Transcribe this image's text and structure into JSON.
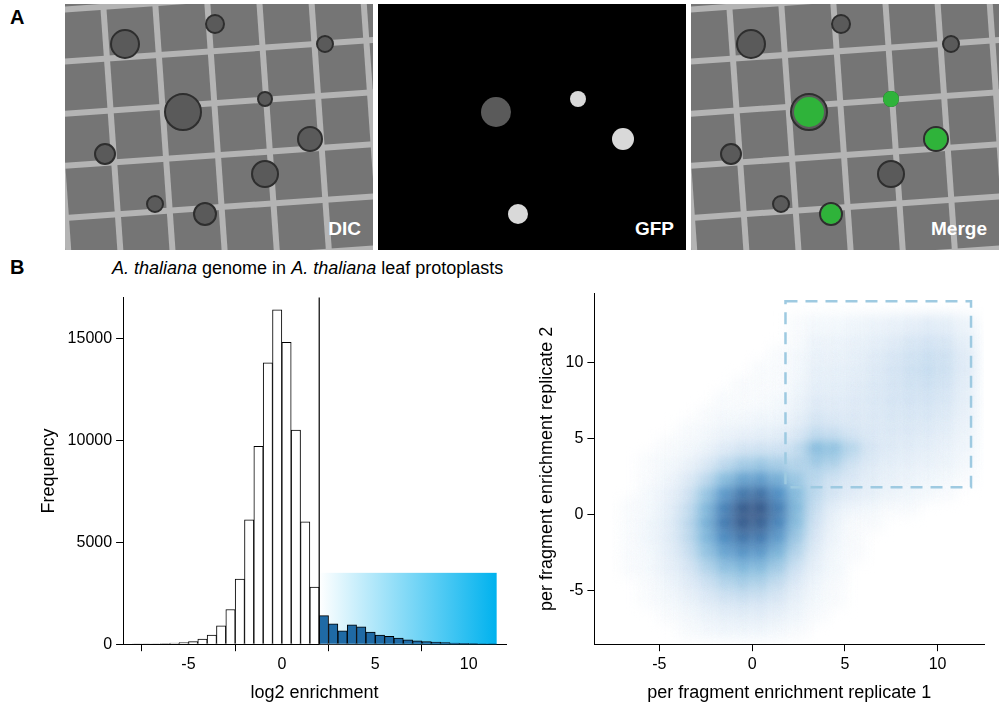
{
  "panels": [
    {
      "letter": "A",
      "images": [
        {
          "label": "DIC"
        },
        {
          "label": "GFP"
        },
        {
          "label": "Merge"
        }
      ]
    },
    {
      "letter": "B",
      "title": [
        {
          "text": "A. thaliana",
          "italic": true
        },
        {
          "text": " genome in "
        },
        {
          "text": "A. thaliana",
          "italic": true
        },
        {
          "text": " leaf protoplasts"
        }
      ]
    }
  ],
  "chart_data": [
    {
      "type": "histogram",
      "x_label": "log2 enrichment",
      "y_label": "Frequency",
      "bins": [
        -8,
        -7.5,
        -7,
        -6.5,
        -6,
        -5.5,
        -5,
        -4.5,
        -4,
        -3.5,
        -3,
        -2.5,
        -2,
        -1.5,
        -1,
        -0.5,
        0,
        0.5,
        1,
        1.5,
        2,
        2.5,
        3,
        3.5,
        4,
        4.5,
        5,
        5.5,
        6,
        6.5,
        7,
        7.5,
        8,
        8.5,
        9,
        9.5,
        10,
        10.5,
        11,
        11.5
      ],
      "values": [
        10,
        15,
        20,
        30,
        50,
        80,
        130,
        250,
        450,
        900,
        1700,
        3200,
        6100,
        9700,
        13800,
        16400,
        14800,
        10500,
        6000,
        2800,
        1400,
        1000,
        650,
        950,
        850,
        600,
        450,
        380,
        300,
        220,
        170,
        130,
        100,
        80,
        60,
        45,
        30,
        20,
        10
      ],
      "colors": [
        "#ffffff",
        "#ffffff",
        "#ffffff",
        "#ffffff",
        "#ffffff",
        "#ffffff",
        "#ffffff",
        "#ffffff",
        "#ffffff",
        "#ffffff",
        "#ffffff",
        "#ffffff",
        "#ffffff",
        "#ffffff",
        "#ffffff",
        "#ffffff",
        "#ffffff",
        "#ffffff",
        "#ffffff",
        "#ffffff",
        "#1f6aa5",
        "#1f6aa5",
        "#1f6aa5",
        "#1f6aa5",
        "#1f6aa5",
        "#1f6aa5",
        "#1f6aa5",
        "#1f6aa5",
        "#1f6aa5",
        "#1f6aa5",
        "#1f6aa5",
        "#1f6aa5",
        "#1f6aa5",
        "#1f6aa5",
        "#1f6aa5",
        "#1f6aa5",
        "#1f6aa5",
        "#1f6aa5",
        "#1f6aa5"
      ],
      "xlim": [
        -8.5,
        12
      ],
      "xticks": [
        -5,
        0,
        5,
        10
      ],
      "ylim": [
        0,
        17000
      ],
      "yticks": [
        0,
        5000,
        10000,
        15000
      ],
      "grid": false,
      "threshold": 2,
      "highlight": {
        "x": [
          2,
          11.5
        ],
        "y": [
          0,
          3500
        ]
      }
    },
    {
      "type": "density",
      "x_label": "per fragment enrichment replicate 1",
      "y_label": "per fragment enrichment replicate 2",
      "xlim": [
        -8.5,
        12.5
      ],
      "xticks": [
        -5,
        0,
        5,
        10
      ],
      "ylim": [
        -8.5,
        14.5
      ],
      "yticks": [
        -5,
        0,
        5,
        10
      ],
      "grid": false,
      "color": "#08306b",
      "cells": {
        "x": [
          -8,
          12
        ],
        "y": [
          -8,
          13
        ],
        "values": [
          [
            0,
            0,
            0,
            0,
            1,
            2,
            3,
            3,
            3,
            2,
            1,
            0,
            0,
            0,
            0,
            0,
            0,
            0,
            0,
            0
          ],
          [
            0,
            0,
            0,
            1,
            2,
            4,
            6,
            7,
            7,
            5,
            3,
            1,
            0,
            0,
            0,
            0,
            0,
            0,
            0,
            0
          ],
          [
            0,
            0,
            1,
            2,
            4,
            8,
            12,
            14,
            13,
            10,
            5,
            2,
            1,
            0,
            0,
            0,
            0,
            0,
            0,
            0
          ],
          [
            0,
            0,
            1,
            3,
            7,
            13,
            20,
            24,
            22,
            16,
            8,
            3,
            1,
            0,
            0,
            0,
            0,
            0,
            0,
            0
          ],
          [
            0,
            1,
            2,
            5,
            10,
            20,
            32,
            38,
            36,
            26,
            13,
            5,
            2,
            0,
            0,
            0,
            0,
            0,
            0,
            0
          ],
          [
            0,
            1,
            2,
            6,
            14,
            30,
            48,
            58,
            55,
            40,
            20,
            7,
            2,
            1,
            0,
            0,
            0,
            0,
            0,
            0
          ],
          [
            0,
            1,
            3,
            7,
            17,
            38,
            64,
            78,
            76,
            56,
            28,
            10,
            3,
            1,
            0,
            0,
            0,
            0,
            0,
            0
          ],
          [
            0,
            1,
            3,
            7,
            18,
            42,
            75,
            95,
            92,
            70,
            36,
            13,
            4,
            1,
            1,
            0,
            0,
            0,
            0,
            0
          ],
          [
            0,
            1,
            2,
            6,
            16,
            38,
            72,
            98,
            100,
            76,
            40,
            16,
            6,
            3,
            2,
            1,
            1,
            0,
            0,
            0
          ],
          [
            0,
            0,
            2,
            5,
            12,
            30,
            58,
            80,
            85,
            66,
            38,
            20,
            12,
            8,
            6,
            4,
            3,
            2,
            1,
            0
          ],
          [
            0,
            0,
            1,
            3,
            8,
            18,
            36,
            52,
            56,
            46,
            30,
            20,
            14,
            10,
            7,
            5,
            4,
            3,
            2,
            1
          ],
          [
            0,
            0,
            1,
            2,
            4,
            9,
            18,
            26,
            30,
            26,
            22,
            28,
            24,
            14,
            9,
            7,
            6,
            5,
            4,
            2
          ],
          [
            0,
            0,
            0,
            1,
            2,
            4,
            8,
            12,
            14,
            14,
            18,
            40,
            36,
            22,
            12,
            9,
            8,
            7,
            5,
            3
          ],
          [
            0,
            0,
            0,
            0,
            1,
            2,
            4,
            5,
            6,
            7,
            10,
            18,
            16,
            12,
            10,
            10,
            10,
            9,
            7,
            4
          ],
          [
            0,
            0,
            0,
            0,
            0,
            1,
            2,
            2,
            3,
            3,
            6,
            12,
            10,
            10,
            10,
            11,
            11,
            11,
            9,
            5
          ],
          [
            0,
            0,
            0,
            0,
            0,
            0,
            1,
            1,
            1,
            2,
            4,
            9,
            8,
            9,
            10,
            12,
            13,
            13,
            11,
            6
          ],
          [
            0,
            0,
            0,
            0,
            0,
            0,
            0,
            1,
            1,
            1,
            3,
            7,
            7,
            8,
            10,
            12,
            14,
            15,
            13,
            7
          ],
          [
            0,
            0,
            0,
            0,
            0,
            0,
            0,
            0,
            1,
            1,
            2,
            6,
            6,
            7,
            9,
            12,
            15,
            17,
            15,
            8
          ],
          [
            0,
            0,
            0,
            0,
            0,
            0,
            0,
            0,
            0,
            1,
            2,
            5,
            5,
            6,
            8,
            11,
            14,
            16,
            15,
            8
          ],
          [
            0,
            0,
            0,
            0,
            0,
            0,
            0,
            0,
            0,
            0,
            1,
            4,
            4,
            5,
            6,
            8,
            11,
            13,
            12,
            6
          ],
          [
            0,
            0,
            0,
            0,
            0,
            0,
            0,
            0,
            0,
            0,
            1,
            2,
            2,
            3,
            4,
            5,
            6,
            8,
            7,
            4
          ]
        ]
      },
      "highlight": {
        "x": [
          1.8,
          11.8
        ],
        "y": [
          1.8,
          14
        ]
      }
    }
  ]
}
